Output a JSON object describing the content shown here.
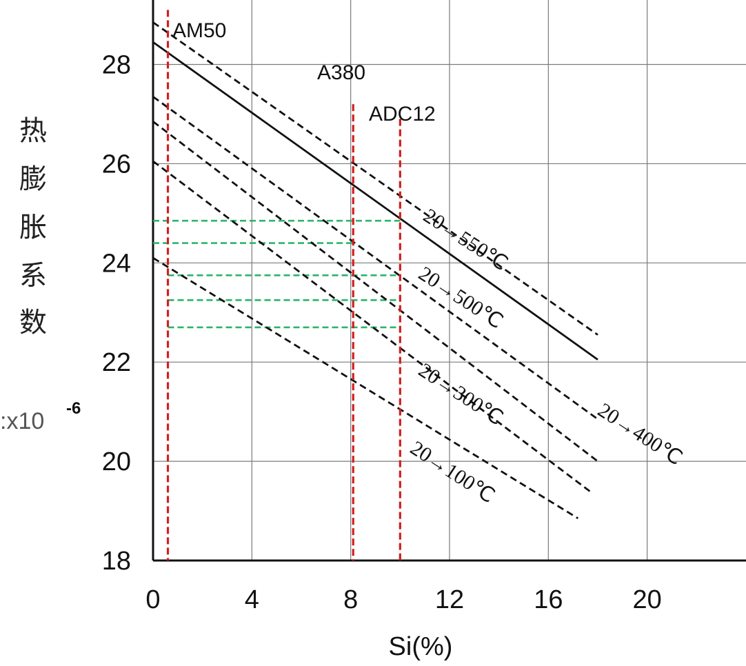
{
  "chart_data": {
    "type": "line",
    "xlabel": "Si(%)",
    "ylabel_chars": [
      "热",
      "膨",
      "胀",
      "系",
      "数"
    ],
    "yunit": ":x10",
    "yunit_exp": "-6",
    "xlim": [
      0,
      24
    ],
    "ylim": [
      18,
      29.3
    ],
    "x_ticks": [
      0,
      4,
      8,
      12,
      16,
      20
    ],
    "x_tick_labels": [
      "0",
      "4",
      "8",
      "12",
      "16",
      "20"
    ],
    "y_ticks": [
      18,
      20,
      22,
      24,
      26,
      28
    ],
    "y_tick_labels": [
      "18",
      "20",
      "22",
      "24",
      "26",
      "28"
    ],
    "grid": true,
    "series": [
      {
        "name": "solid",
        "label": "",
        "style": "solid",
        "x": [
          0,
          18
        ],
        "y": [
          28.45,
          22.05
        ]
      },
      {
        "name": "550",
        "label": "20→550℃",
        "style": "dashed",
        "x": [
          0,
          18
        ],
        "y": [
          28.85,
          22.55
        ]
      },
      {
        "name": "500",
        "label": "20→500℃",
        "style": "dashed",
        "x": [
          0,
          18
        ],
        "y": [
          27.35,
          20.85
        ]
      },
      {
        "name": "400",
        "label": "20→400℃",
        "style": "dashed",
        "x": [
          0,
          18
        ],
        "y": [
          26.85,
          20.0
        ]
      },
      {
        "name": "300",
        "label": "20→300℃",
        "style": "dashed",
        "x": [
          0,
          17.8
        ],
        "y": [
          26.05,
          19.35
        ]
      },
      {
        "name": "100",
        "label": "20→100℃",
        "style": "dashed",
        "x": [
          0,
          17.2
        ],
        "y": [
          24.1,
          18.85
        ]
      }
    ],
    "alloy_lines": [
      {
        "label": "AM50",
        "x": 0.6,
        "ytop": 29.1
      },
      {
        "label": "A380",
        "x": 8.1,
        "ytop": 27.2
      },
      {
        "label": "ADC12",
        "x": 10.0,
        "ytop": 26.9
      }
    ],
    "reference_lines": [
      {
        "y": 24.85,
        "x_from": 0,
        "x_to": 10.0
      },
      {
        "y": 24.4,
        "x_from": 0,
        "x_to": 8.1
      },
      {
        "y": 23.75,
        "x_from": 0.6,
        "x_to": 10.0
      },
      {
        "y": 23.25,
        "x_from": 0.6,
        "x_to": 10.0
      },
      {
        "y": 22.7,
        "x_from": 0.6,
        "x_to": 10.0
      }
    ]
  }
}
